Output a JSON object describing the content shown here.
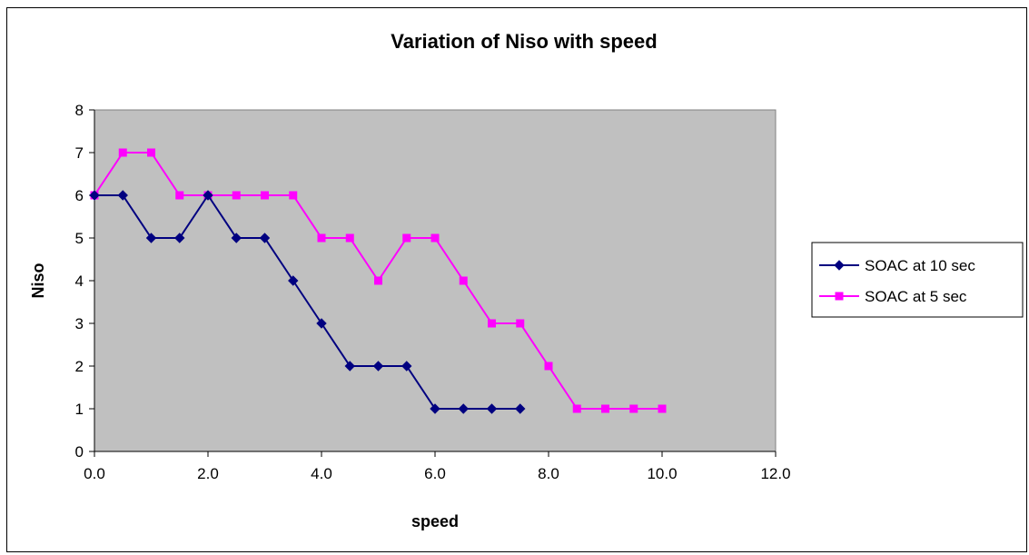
{
  "chart_data": {
    "type": "line",
    "title": "Variation of Niso with speed",
    "xlabel": "speed",
    "ylabel": "Niso",
    "xlim": [
      0,
      12
    ],
    "ylim": [
      0,
      8
    ],
    "x_tick_labels": [
      "0.0",
      "2.0",
      "4.0",
      "6.0",
      "8.0",
      "10.0",
      "12.0"
    ],
    "y_tick_labels": [
      "0",
      "1",
      "2",
      "3",
      "4",
      "5",
      "6",
      "7",
      "8"
    ],
    "grid": false,
    "plot_background": "#c0c0c0",
    "legend_position": "right",
    "series": [
      {
        "name": "SOAC at 10 sec",
        "color": "#000080",
        "marker": "diamond",
        "x": [
          0.0,
          0.5,
          1.0,
          1.5,
          2.0,
          2.5,
          3.0,
          3.5,
          4.0,
          4.5,
          5.0,
          5.5,
          6.0,
          6.5,
          7.0,
          7.5
        ],
        "y": [
          6,
          6,
          5,
          5,
          6,
          5,
          5,
          4,
          3,
          2,
          2,
          2,
          1,
          1,
          1,
          1
        ]
      },
      {
        "name": "SOAC at 5 sec",
        "color": "#ff00ff",
        "marker": "square",
        "x": [
          0.0,
          0.5,
          1.0,
          1.5,
          2.0,
          2.5,
          3.0,
          3.5,
          4.0,
          4.5,
          5.0,
          5.5,
          6.0,
          6.5,
          7.0,
          7.5,
          8.0,
          8.5,
          9.0,
          9.5,
          10.0
        ],
        "y": [
          6,
          7,
          7,
          6,
          6,
          6,
          6,
          6,
          5,
          5,
          4,
          5,
          5,
          4,
          3,
          3,
          2,
          1,
          1,
          1,
          1
        ]
      }
    ]
  }
}
